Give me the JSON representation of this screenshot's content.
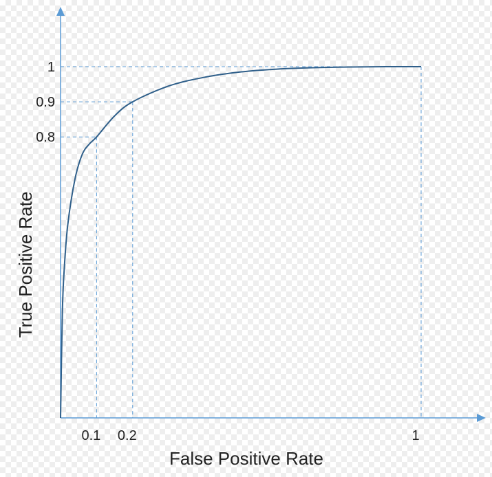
{
  "chart_data": {
    "type": "line",
    "xlabel": "False Positive Rate",
    "ylabel": "True Positive Rate",
    "xlim": [
      0,
      1
    ],
    "ylim": [
      0,
      1
    ],
    "x_ticks": [
      {
        "value": 0.1,
        "label": "0.1"
      },
      {
        "value": 0.2,
        "label": "0.2"
      },
      {
        "value": 1,
        "label": "1"
      }
    ],
    "y_ticks": [
      {
        "value": 0.8,
        "label": "0.8"
      },
      {
        "value": 0.9,
        "label": "0.9"
      },
      {
        "value": 1,
        "label": "1"
      }
    ],
    "grid": false,
    "curve": {
      "x": [
        0,
        0.005,
        0.01,
        0.02,
        0.04,
        0.06,
        0.08,
        0.1,
        0.15,
        0.2,
        0.3,
        0.4,
        0.5,
        0.6,
        0.7,
        0.8,
        0.9,
        1.0
      ],
      "y": [
        0,
        0.3,
        0.42,
        0.55,
        0.68,
        0.75,
        0.78,
        0.8,
        0.86,
        0.9,
        0.945,
        0.97,
        0.985,
        0.993,
        0.997,
        0.999,
        1.0,
        1.0
      ]
    },
    "reference_points": [
      {
        "x": 0.1,
        "y": 0.8
      },
      {
        "x": 0.2,
        "y": 0.9
      },
      {
        "x": 1,
        "y": 1
      }
    ],
    "colors": {
      "axis": "#5b9bd5",
      "curve": "#2f5f8a",
      "guide": "#5b9bd5"
    }
  }
}
